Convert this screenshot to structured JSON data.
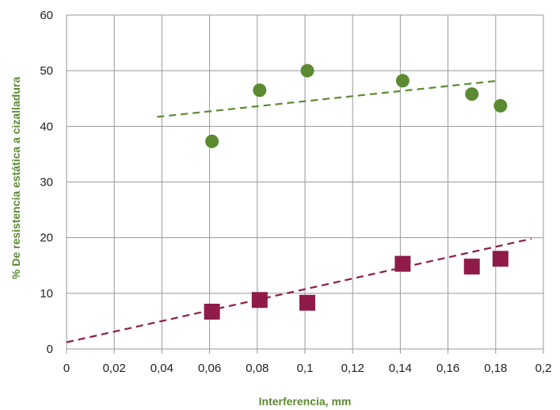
{
  "chart_data": {
    "type": "scatter",
    "xlabel": "Interferencia, mm",
    "ylabel": "% De resistencia estática a cizalladura",
    "xlim": [
      0,
      0.2
    ],
    "ylim": [
      0,
      60
    ],
    "x_ticks": [
      "0",
      "0,02",
      "0,04",
      "0,06",
      "0,08",
      "0,1",
      "0,12",
      "0,14",
      "0,16",
      "0,18",
      "0,2"
    ],
    "y_ticks": [
      "0",
      "10",
      "20",
      "30",
      "40",
      "50",
      "60"
    ],
    "grid": true,
    "colors": {
      "green": "#5b8a32",
      "maroon": "#8e1b4a",
      "grid": "#999999",
      "title": "#5b8a32"
    },
    "series": [
      {
        "marker": "circle",
        "color": "#5b8a32",
        "points": [
          {
            "x": 0.061,
            "y": 37.3
          },
          {
            "x": 0.081,
            "y": 46.5
          },
          {
            "x": 0.101,
            "y": 50.0
          },
          {
            "x": 0.141,
            "y": 48.2
          },
          {
            "x": 0.17,
            "y": 45.8
          },
          {
            "x": 0.182,
            "y": 43.7
          }
        ],
        "trendline": {
          "x": [
            0.038,
            0.181
          ],
          "y": [
            41.7,
            48.2
          ],
          "style": "dashed"
        }
      },
      {
        "marker": "square",
        "color": "#8e1b4a",
        "points": [
          {
            "x": 0.061,
            "y": 6.7
          },
          {
            "x": 0.081,
            "y": 8.8
          },
          {
            "x": 0.101,
            "y": 8.3
          },
          {
            "x": 0.141,
            "y": 15.3
          },
          {
            "x": 0.17,
            "y": 14.8
          },
          {
            "x": 0.182,
            "y": 16.2
          }
        ],
        "trendline": {
          "x": [
            0.0,
            0.195
          ],
          "y": [
            1.2,
            19.8
          ],
          "style": "dashed"
        }
      }
    ]
  }
}
